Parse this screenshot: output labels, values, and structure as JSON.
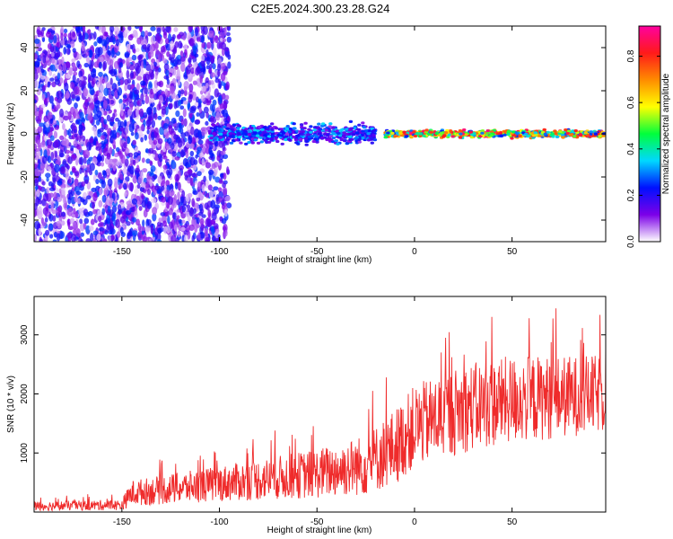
{
  "title": "C2E5.2024.300.23.28.G24",
  "chart_data": [
    {
      "type": "heatmap",
      "xlabel": "Height of straight line (km)",
      "ylabel": "Frequency (Hz)",
      "xlim": [
        -195,
        98
      ],
      "ylim": [
        -50,
        50
      ],
      "xticks": [
        -150,
        -100,
        -50,
        0,
        50
      ],
      "yticks": [
        -40,
        -20,
        0,
        20,
        40
      ],
      "colorbar": {
        "label": "Normalized spectral amplitude",
        "range": [
          0,
          0.93
        ],
        "ticks": [
          "0.0",
          "0.2",
          "0.4",
          "0.6",
          "0.8"
        ],
        "colors": [
          "#ffffff",
          "#7c00e8",
          "#0010ff",
          "#00d8ff",
          "#00ff3c",
          "#ffff00",
          "#ff8c00",
          "#ff1a1a",
          "#ff00a0"
        ]
      },
      "description_of_signal": [
        {
          "x_range": [
            -195,
            -95
          ],
          "freq_center": 0,
          "freq_spread": 50,
          "amplitude": 0.05
        },
        {
          "x_range": [
            -105,
            -20
          ],
          "freq_center": 0,
          "freq_spread": 4,
          "amplitude": 0.3
        },
        {
          "x_range": [
            -15,
            98
          ],
          "freq_center": 0,
          "freq_spread": 1.5,
          "amplitude": 0.75
        }
      ]
    },
    {
      "type": "line",
      "xlabel": "Height of straight line (km)",
      "ylabel": "SNR (10 * v/v)",
      "xlim": [
        -195,
        98
      ],
      "ylim": [
        0,
        3650
      ],
      "xticks": [
        -150,
        -100,
        -50,
        0,
        50
      ],
      "yticks": [
        1000,
        2000,
        3000
      ],
      "series": [
        {
          "color": "#ef2b2b",
          "envelope": {
            "x": [
              -195,
              -150,
              -145,
              -100,
              -50,
              -25,
              -10,
              0,
              25,
              50,
              75,
              98
            ],
            "mean": [
              100,
              120,
              320,
              480,
              650,
              800,
              1100,
              1450,
              1750,
              1900,
              1950,
              2000
            ],
            "spread": [
              80,
              90,
              220,
              300,
              420,
              520,
              650,
              700,
              750,
              750,
              700,
              650
            ]
          }
        }
      ]
    }
  ]
}
